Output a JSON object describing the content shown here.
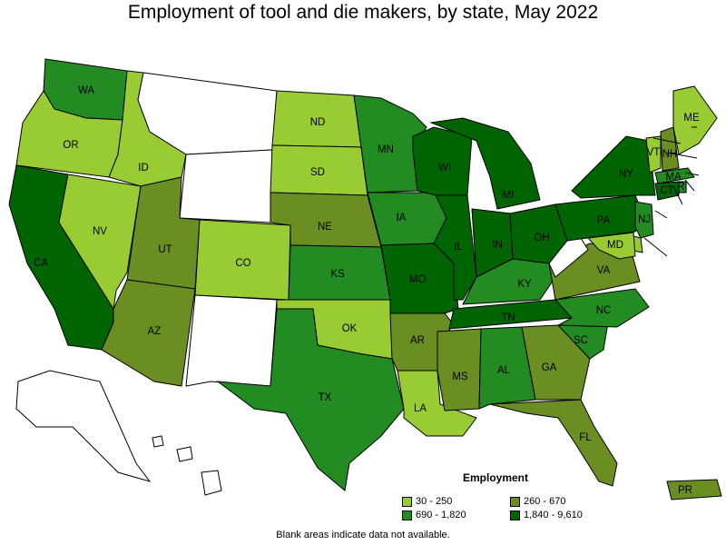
{
  "title": "Employment of tool and die makers, by state, May 2022",
  "legend": {
    "title": "Employment",
    "items": [
      {
        "label": "30 - 250",
        "color": "#99cc33"
      },
      {
        "label": "260 - 670",
        "color": "#6b8e23"
      },
      {
        "label": "690 - 1,820",
        "color": "#228b22"
      },
      {
        "label": "1,840 - 9,610",
        "color": "#006400"
      }
    ]
  },
  "note": "Blank areas indicate data not available.",
  "colors": {
    "c1": "#99cc33",
    "c2": "#6b8e23",
    "c3": "#228b22",
    "c4": "#006400",
    "na": "#ffffff"
  },
  "states": [
    {
      "abbr": "WA",
      "class": 3
    },
    {
      "abbr": "OR",
      "class": 1
    },
    {
      "abbr": "CA",
      "class": 4
    },
    {
      "abbr": "NV",
      "class": 1
    },
    {
      "abbr": "ID",
      "class": 1
    },
    {
      "abbr": "MT",
      "class": 0
    },
    {
      "abbr": "WY",
      "class": 0
    },
    {
      "abbr": "UT",
      "class": 2
    },
    {
      "abbr": "AZ",
      "class": 2
    },
    {
      "abbr": "CO",
      "class": 1
    },
    {
      "abbr": "NM",
      "class": 0
    },
    {
      "abbr": "ND",
      "class": 1
    },
    {
      "abbr": "SD",
      "class": 1
    },
    {
      "abbr": "NE",
      "class": 2
    },
    {
      "abbr": "KS",
      "class": 3
    },
    {
      "abbr": "OK",
      "class": 1
    },
    {
      "abbr": "TX",
      "class": 3
    },
    {
      "abbr": "MN",
      "class": 3
    },
    {
      "abbr": "IA",
      "class": 3
    },
    {
      "abbr": "MO",
      "class": 4
    },
    {
      "abbr": "AR",
      "class": 2
    },
    {
      "abbr": "LA",
      "class": 1
    },
    {
      "abbr": "WI",
      "class": 4
    },
    {
      "abbr": "IL",
      "class": 4
    },
    {
      "abbr": "MI",
      "class": 4
    },
    {
      "abbr": "IN",
      "class": 4
    },
    {
      "abbr": "OH",
      "class": 4
    },
    {
      "abbr": "KY",
      "class": 3
    },
    {
      "abbr": "TN",
      "class": 4
    },
    {
      "abbr": "MS",
      "class": 2
    },
    {
      "abbr": "AL",
      "class": 3
    },
    {
      "abbr": "GA",
      "class": 2
    },
    {
      "abbr": "FL",
      "class": 2
    },
    {
      "abbr": "SC",
      "class": 3
    },
    {
      "abbr": "NC",
      "class": 3
    },
    {
      "abbr": "VA",
      "class": 2
    },
    {
      "abbr": "WV",
      "class": 0
    },
    {
      "abbr": "PA",
      "class": 4
    },
    {
      "abbr": "NY",
      "class": 4
    },
    {
      "abbr": "VT",
      "class": 1
    },
    {
      "abbr": "NH",
      "class": 2
    },
    {
      "abbr": "ME",
      "class": 1
    },
    {
      "abbr": "MA",
      "class": 3
    },
    {
      "abbr": "RI",
      "class": 3
    },
    {
      "abbr": "CT",
      "class": 4
    },
    {
      "abbr": "NJ",
      "class": 3
    },
    {
      "abbr": "DE",
      "class": 1
    },
    {
      "abbr": "MD",
      "class": 1
    },
    {
      "abbr": "AK",
      "class": 0
    },
    {
      "abbr": "HI",
      "class": 0
    },
    {
      "abbr": "PR",
      "class": 2
    }
  ]
}
